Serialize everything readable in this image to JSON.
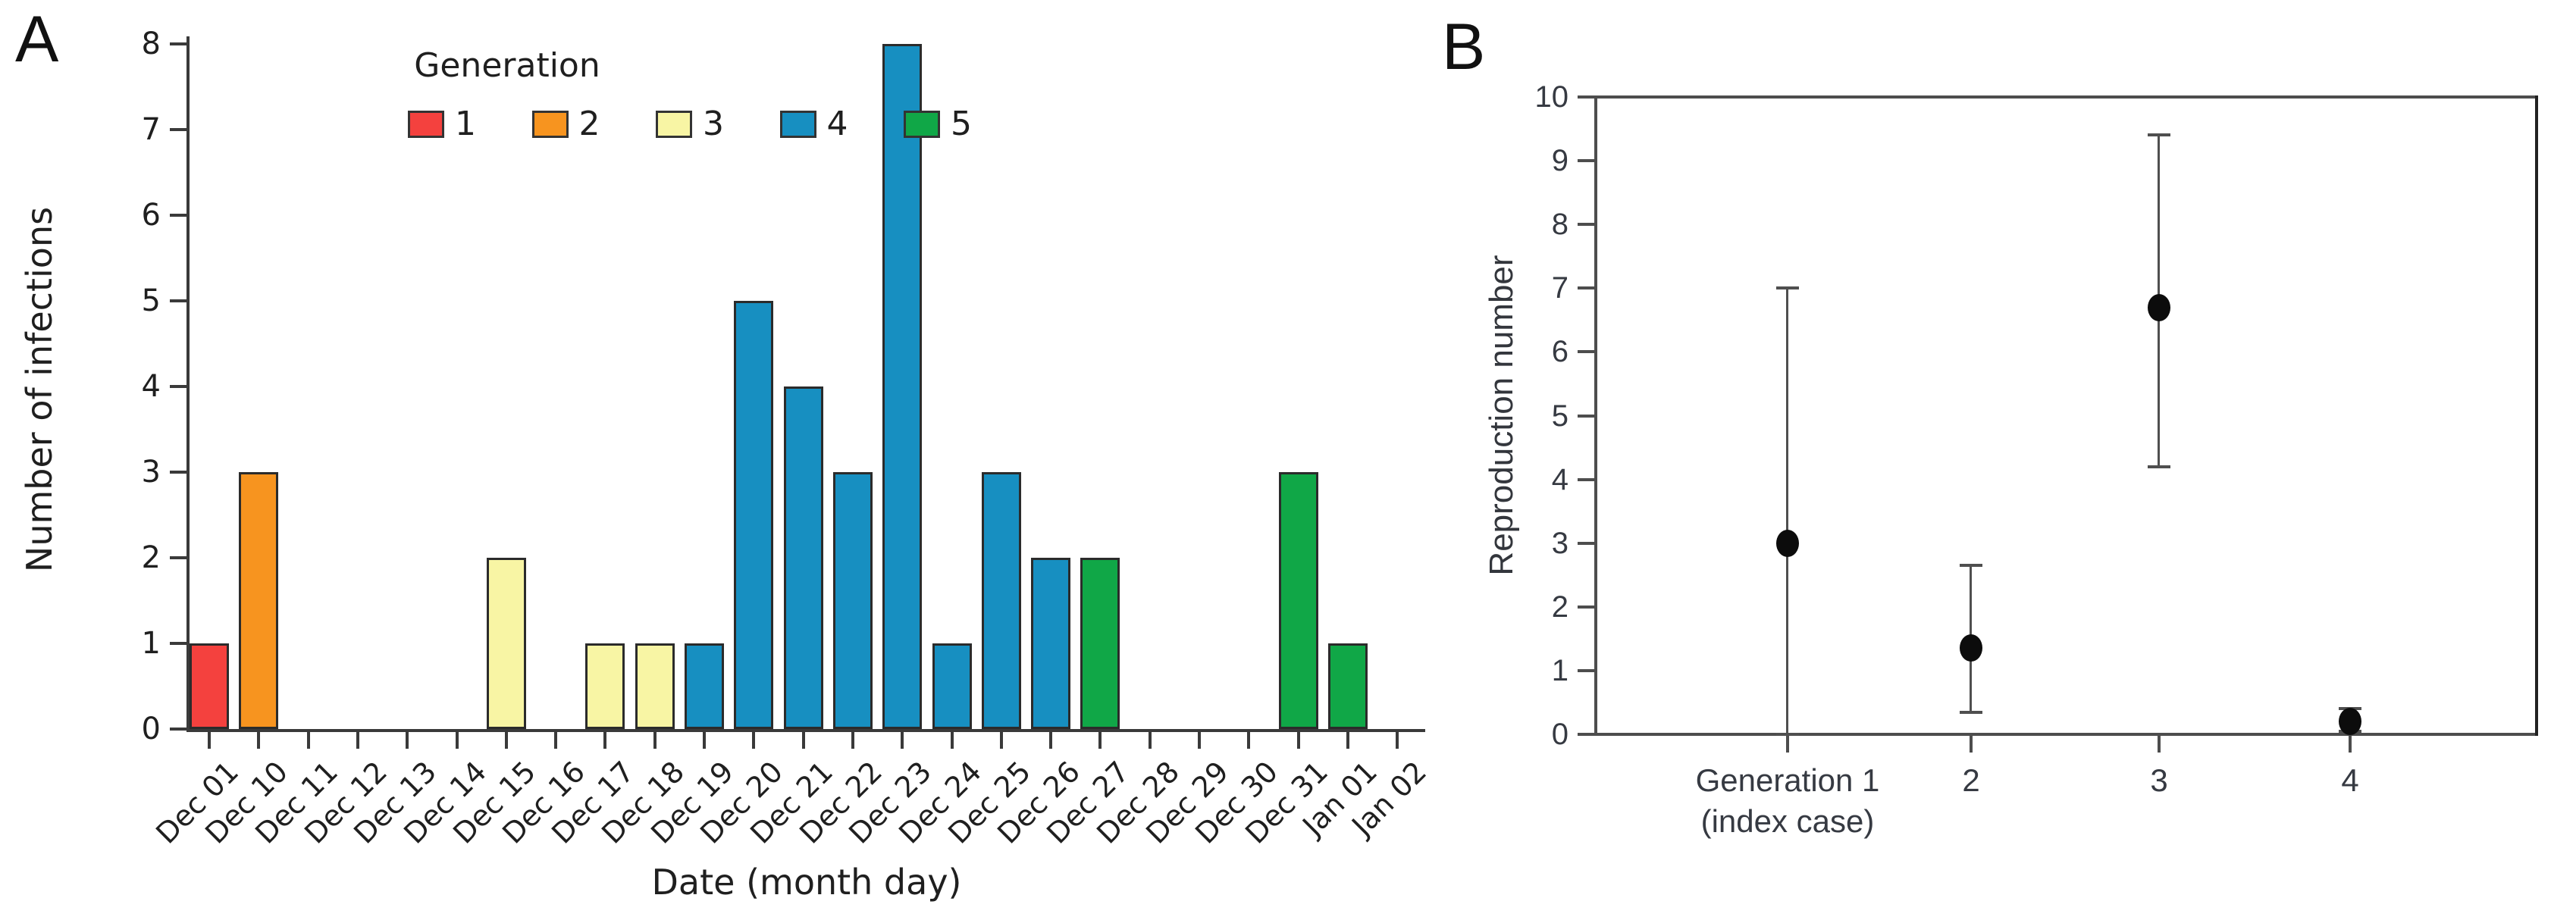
{
  "figure": {
    "background": "#ffffff",
    "colors": {
      "bar_outline": "#2b2b2b",
      "axis_a": "#3a3a3a",
      "frame_b": "#4d4d4d",
      "error_bar": "#4f4f4f",
      "point": "#0c0c0c",
      "text": "#1f1f1f"
    }
  },
  "chart_data": [
    {
      "id": "epidemic-curve",
      "type": "bar",
      "panel_label": "A",
      "xlabel": "Date (month day)",
      "ylabel": "Number of infections",
      "ylim": [
        0,
        8
      ],
      "yticks": [
        0,
        1,
        2,
        3,
        4,
        5,
        6,
        7,
        8
      ],
      "grid": false,
      "categories": [
        "Dec 01",
        "Dec 10",
        "Dec 11",
        "Dec 12",
        "Dec 13",
        "Dec 14",
        "Dec 15",
        "Dec 16",
        "Dec 17",
        "Dec 18",
        "Dec 19",
        "Dec 20",
        "Dec 21",
        "Dec 22",
        "Dec 23",
        "Dec 24",
        "Dec 25",
        "Dec 26",
        "Dec 27",
        "Dec 28",
        "Dec 29",
        "Dec 30",
        "Dec 31",
        "Jan 01",
        "Jan 02"
      ],
      "values": [
        1,
        3,
        0,
        0,
        0,
        0,
        2,
        0,
        1,
        1,
        1,
        5,
        4,
        3,
        8,
        1,
        3,
        2,
        2,
        0,
        0,
        0,
        3,
        1,
        0
      ],
      "bar_generation": [
        1,
        2,
        null,
        null,
        null,
        null,
        3,
        null,
        3,
        3,
        4,
        4,
        4,
        4,
        4,
        4,
        4,
        4,
        5,
        null,
        null,
        null,
        5,
        5,
        null
      ],
      "generation_colors": {
        "1": "#f4413e",
        "2": "#f7941f",
        "3": "#f8f5a4",
        "4": "#178fc1",
        "5": "#10a747"
      },
      "legend": {
        "title": "Generation",
        "position": "top-left-inside",
        "items": [
          {
            "label": "1",
            "color": "#f4413e"
          },
          {
            "label": "2",
            "color": "#f7941f"
          },
          {
            "label": "3",
            "color": "#f8f5a4"
          },
          {
            "label": "4",
            "color": "#178fc1"
          },
          {
            "label": "5",
            "color": "#10a747"
          }
        ]
      }
    },
    {
      "id": "reproduction-number-by-generation",
      "type": "scatter",
      "panel_label": "B",
      "ylabel": "Reproduction number",
      "ylim": [
        0,
        10
      ],
      "yticks": [
        0,
        1,
        2,
        3,
        4,
        5,
        6,
        7,
        8,
        9,
        10
      ],
      "grid": false,
      "frame": "box",
      "marker": "black-dot-with-error-bars",
      "points": [
        {
          "label_lines": [
            "Generation 1",
            "(index case)"
          ],
          "r": 3.0,
          "ci_low": 0.0,
          "ci_high": 7.0
        },
        {
          "label_lines": [
            "2"
          ],
          "r": 1.35,
          "ci_low": 0.35,
          "ci_high": 2.65
        },
        {
          "label_lines": [
            "3"
          ],
          "r": 6.7,
          "ci_low": 4.2,
          "ci_high": 9.4
        },
        {
          "label_lines": [
            "4"
          ],
          "r": 0.2,
          "ci_low": 0.05,
          "ci_high": 0.4
        }
      ]
    }
  ]
}
